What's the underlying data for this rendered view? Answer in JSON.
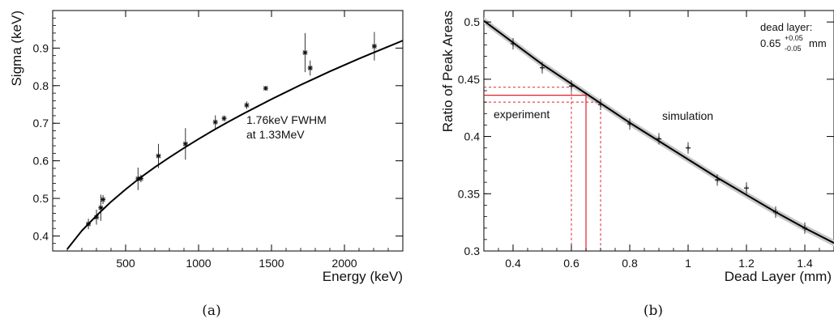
{
  "chart_data": [
    {
      "type": "scatter",
      "panel_label": "(a)",
      "xlabel": "Energy (keV)",
      "ylabel": "Sigma (keV)",
      "xlim": [
        0,
        2400
      ],
      "ylim": [
        0.36,
        1.0
      ],
      "xticks": [
        500,
        1000,
        1500,
        2000
      ],
      "yticks": [
        0.4,
        0.5,
        0.6,
        0.7,
        0.8,
        0.9
      ],
      "annotation": [
        "1.76keV FWHM",
        "at 1.33MeV"
      ],
      "series": [
        {
          "kind": "points",
          "points": [
            {
              "x": 245,
              "y": 0.432,
              "err": 0.014
            },
            {
              "x": 300,
              "y": 0.45,
              "err": 0.02
            },
            {
              "x": 330,
              "y": 0.475,
              "err": 0.035
            },
            {
              "x": 345,
              "y": 0.497,
              "err": 0.012
            },
            {
              "x": 585,
              "y": 0.552,
              "err": 0.03
            },
            {
              "x": 605,
              "y": 0.553,
              "err": 0.01
            },
            {
              "x": 725,
              "y": 0.613,
              "err": 0.032
            },
            {
              "x": 910,
              "y": 0.645,
              "err": 0.042
            },
            {
              "x": 1115,
              "y": 0.703,
              "err": 0.018
            },
            {
              "x": 1175,
              "y": 0.713,
              "err": 0.008
            },
            {
              "x": 1330,
              "y": 0.748,
              "err": 0.01
            },
            {
              "x": 1460,
              "y": 0.793,
              "err": 0.005
            },
            {
              "x": 1730,
              "y": 0.888,
              "err": 0.052
            },
            {
              "x": 1765,
              "y": 0.847,
              "err": 0.02
            },
            {
              "x": 2205,
              "y": 0.905,
              "err": 0.038
            }
          ]
        },
        {
          "kind": "fit-curve",
          "x": [
            100,
            200,
            300,
            400,
            500,
            600,
            700,
            800,
            900,
            1000,
            1100,
            1200,
            1300,
            1400,
            1500,
            1600,
            1700,
            1800,
            1900,
            2000,
            2100,
            2200,
            2300,
            2400
          ],
          "y": [
            0.365,
            0.414,
            0.454,
            0.491,
            0.524,
            0.555,
            0.583,
            0.609,
            0.634,
            0.658,
            0.681,
            0.703,
            0.724,
            0.744,
            0.764,
            0.783,
            0.802,
            0.82,
            0.838,
            0.855,
            0.872,
            0.888,
            0.904,
            0.92
          ]
        }
      ]
    },
    {
      "type": "scatter",
      "panel_label": "(b)",
      "xlabel": "Dead Layer (mm)",
      "ylabel": "Ratio of Peak Areas",
      "xlim": [
        0.3,
        1.5
      ],
      "ylim": [
        0.3,
        0.51
      ],
      "xticks": [
        0.4,
        0.6,
        0.8,
        1,
        1.2,
        1.4
      ],
      "xtick_labels": [
        "0.4",
        "0.6",
        "0.8",
        "1",
        "1.2",
        "1.4"
      ],
      "yticks": [
        0.3,
        0.35,
        0.4,
        0.45,
        0.5
      ],
      "ytick_labels": [
        "0.3",
        "0.35",
        "0.4",
        "0.45",
        "0.5"
      ],
      "labels": {
        "simulation": "simulation",
        "experiment": "experiment"
      },
      "dead_layer_label": "dead layer:",
      "dead_layer_value": {
        "base": "0.65",
        "sup": "+0.05",
        "sub": "-0.05",
        "unit": "mm"
      },
      "experiment": {
        "value": 0.436,
        "low": 0.43,
        "high": 0.443,
        "dead_layer": 0.65,
        "dead_layer_low": 0.6,
        "dead_layer_high": 0.7,
        "color": "#e0202a"
      },
      "series": [
        {
          "kind": "points",
          "points": [
            {
              "x": 0.4,
              "y": 0.481,
              "err": 0.005
            },
            {
              "x": 0.5,
              "y": 0.46,
              "err": 0.005
            },
            {
              "x": 0.6,
              "y": 0.444,
              "err": 0.005
            },
            {
              "x": 0.7,
              "y": 0.428,
              "err": 0.005
            },
            {
              "x": 0.8,
              "y": 0.411,
              "err": 0.005
            },
            {
              "x": 0.9,
              "y": 0.398,
              "err": 0.005
            },
            {
              "x": 1.0,
              "y": 0.39,
              "err": 0.005
            },
            {
              "x": 1.1,
              "y": 0.362,
              "err": 0.005
            },
            {
              "x": 1.2,
              "y": 0.355,
              "err": 0.005
            },
            {
              "x": 1.3,
              "y": 0.334,
              "err": 0.005
            },
            {
              "x": 1.4,
              "y": 0.32,
              "err": 0.005
            }
          ]
        },
        {
          "kind": "fit-curve",
          "band": 0.003,
          "x": [
            0.3,
            0.4,
            0.5,
            0.6,
            0.7,
            0.8,
            0.9,
            1.0,
            1.1,
            1.2,
            1.3,
            1.4,
            1.5
          ],
          "y": [
            0.501,
            0.482,
            0.463,
            0.446,
            0.429,
            0.412,
            0.396,
            0.38,
            0.364,
            0.349,
            0.334,
            0.32,
            0.307
          ]
        }
      ]
    }
  ]
}
